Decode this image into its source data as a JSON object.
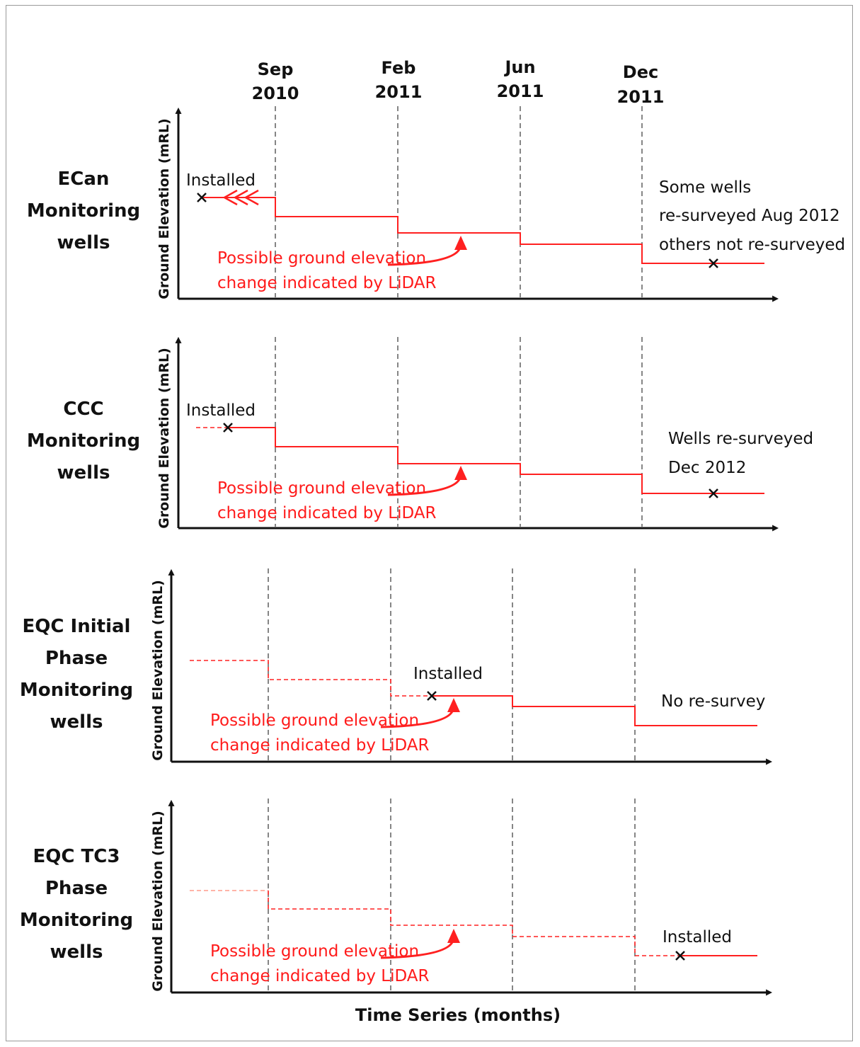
{
  "colors": {
    "accent": "#ff2020",
    "axis": "#111111",
    "text": "#111111",
    "divider": "#444444"
  },
  "dates": [
    {
      "month": "Sep",
      "year": "2010"
    },
    {
      "month": "Feb",
      "year": "2011"
    },
    {
      "month": "Jun",
      "year": "2011"
    },
    {
      "month": "Dec",
      "year": "2011"
    }
  ],
  "x_axis_label": "Time Series (months)",
  "y_axis_label": "Ground Elevation (mRL)",
  "panels": [
    {
      "label_lines": [
        "ECan",
        "Monitoring",
        "wells"
      ],
      "installed_label": "Installed",
      "lidar_lines": [
        "Possible ground elevation",
        "change indicated by LiDAR"
      ],
      "note_lines": [
        "Some wells",
        "re-surveyed Aug 2012",
        "others not re-surveyed"
      ]
    },
    {
      "label_lines": [
        "CCC",
        "Monitoring",
        "wells"
      ],
      "installed_label": "Installed",
      "lidar_lines": [
        "Possible ground elevation",
        "change indicated by LiDAR"
      ],
      "note_lines": [
        "Wells re-surveyed",
        "Dec 2012"
      ]
    },
    {
      "label_lines": [
        "EQC Initial",
        "Phase",
        "Monitoring",
        "wells"
      ],
      "installed_label": "Installed",
      "lidar_lines": [
        "Possible ground elevation",
        "change indicated by LiDAR"
      ],
      "note_lines": [
        "No re-survey"
      ]
    },
    {
      "label_lines": [
        "EQC TC3",
        "Phase",
        "Monitoring",
        "wells"
      ],
      "installed_label": "Installed",
      "lidar_lines": [
        "Possible ground elevation",
        "change indicated by LiDAR"
      ],
      "note_lines": []
    }
  ]
}
